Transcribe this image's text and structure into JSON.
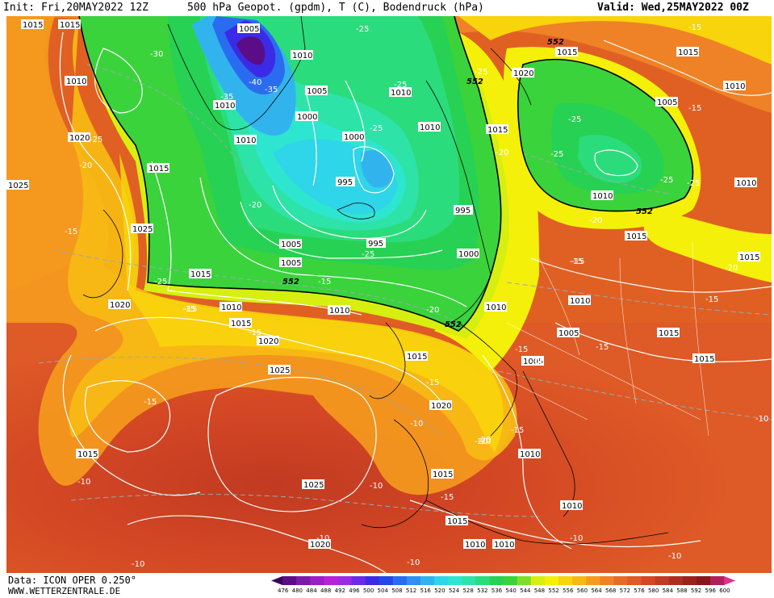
{
  "header": {
    "init": "Init: Fri,20MAY2022 12Z",
    "title": "500 hPa Geopot. (gpdm), T (C), Bodendruck (hPa)",
    "valid": "Valid: Wed,25MAY2022 00Z"
  },
  "footer": {
    "data_source": "Data: ICON OPER 0.250°",
    "website": "WWW.WETTERZENTRALE.DE"
  },
  "legend": {
    "ticks": [
      "476",
      "480",
      "484",
      "488",
      "492",
      "496",
      "500",
      "504",
      "508",
      "512",
      "516",
      "520",
      "524",
      "528",
      "532",
      "536",
      "540",
      "544",
      "548",
      "552",
      "556",
      "560",
      "564",
      "568",
      "572",
      "576",
      "580",
      "584",
      "588",
      "592",
      "596",
      "600"
    ],
    "colors": [
      "#3b005e",
      "#5a0d86",
      "#7b1aa8",
      "#9a1fc4",
      "#b623d9",
      "#9a2be3",
      "#6b2ae8",
      "#3b2be6",
      "#2348e6",
      "#2a6cf0",
      "#2f90f2",
      "#31b4ee",
      "#2fd5e8",
      "#2ee6cf",
      "#2ee3a8",
      "#2bdc7c",
      "#27d153",
      "#3ad33c",
      "#7ede2c",
      "#d6ef10",
      "#f4f00a",
      "#f8d40c",
      "#f7b814",
      "#f59b1e",
      "#ef8226",
      "#e66a28",
      "#de5a26",
      "#d34724",
      "#c13a22",
      "#ad2e20",
      "#9a221d",
      "#86161a",
      "#b0205a",
      "#e0308c"
    ]
  },
  "map": {
    "surface_pressure_labels": [
      "1015",
      "1015",
      "1010",
      "1020",
      "1025",
      "1015",
      "1025",
      "1020",
      "1015",
      "1010",
      "1010",
      "1005",
      "1010",
      "1010",
      "1000",
      "1005",
      "1010",
      "1000",
      "995",
      "995",
      "995",
      "1000",
      "1005",
      "1005",
      "1015",
      "1010",
      "1015",
      "1020",
      "1010",
      "1015",
      "1005",
      "1010",
      "1010",
      "1015",
      "1015",
      "1020",
      "1015",
      "1025",
      "1025",
      "1015",
      "1010",
      "1015",
      "1015",
      "1005",
      "1010",
      "1010",
      "1020",
      "1010",
      "1010",
      "1015",
      "1015",
      "1005",
      "1015",
      "1020",
      "1010",
      "1010"
    ],
    "temperature_labels": [
      "-35",
      "-30",
      "-40",
      "-35",
      "-25",
      "-25",
      "-25",
      "-25",
      "-25",
      "-25",
      "-20",
      "-20",
      "-25",
      "-25",
      "-25",
      "-20",
      "-15",
      "-15",
      "-20",
      "-25",
      "-25",
      "-20",
      "-20",
      "-15",
      "-15",
      "-15",
      "-15",
      "-20",
      "-15",
      "-15",
      "-15",
      "-15",
      "-15",
      "-15",
      "-15",
      "-10",
      "-15",
      "-20",
      "-15",
      "-10",
      "-10",
      "-10",
      "-10",
      "-10",
      "-10",
      "-10",
      "-10",
      "-15",
      "-20",
      "-15"
    ],
    "geopotential_labels": [
      "552",
      "552",
      "552",
      "552",
      "552"
    ]
  }
}
